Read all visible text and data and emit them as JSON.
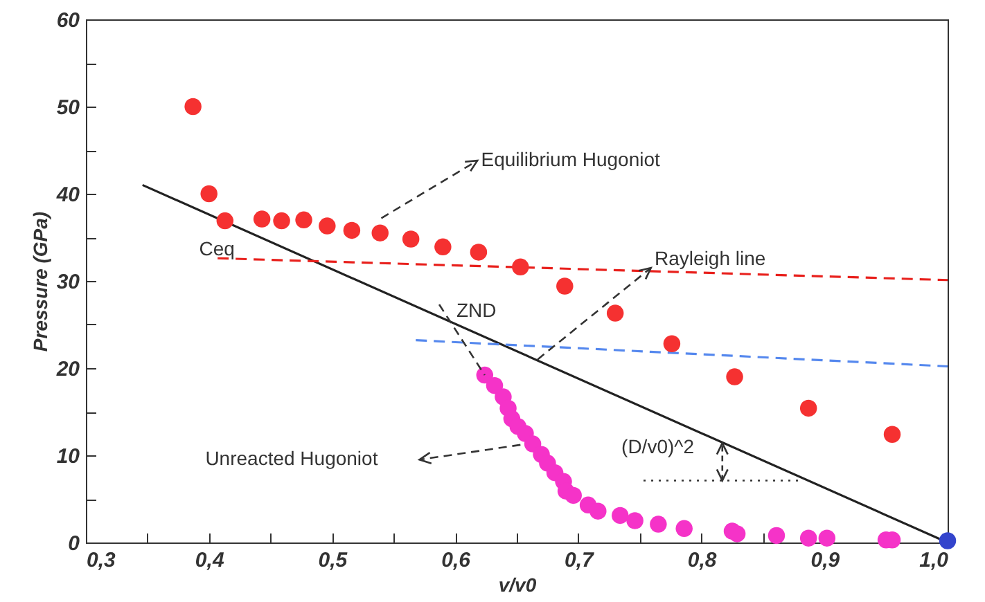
{
  "chart_data": {
    "type": "scatter",
    "xlabel": "v/v0",
    "ylabel": "Pressure (GPa)",
    "xlim": [
      0.3,
      1.0
    ],
    "ylim": [
      0,
      60
    ],
    "xticks": [
      {
        "value": 0.3,
        "label": "0,3"
      },
      {
        "value": 0.35,
        "label": null
      },
      {
        "value": 0.4,
        "label": "0,4"
      },
      {
        "value": 0.45,
        "label": null
      },
      {
        "value": 0.5,
        "label": "0,5"
      },
      {
        "value": 0.55,
        "label": null
      },
      {
        "value": 0.6,
        "label": "0,6"
      },
      {
        "value": 0.65,
        "label": null
      },
      {
        "value": 0.7,
        "label": "0,7"
      },
      {
        "value": 0.75,
        "label": null
      },
      {
        "value": 0.8,
        "label": "0,8"
      },
      {
        "value": 0.85,
        "label": null
      },
      {
        "value": 0.9,
        "label": "0,9"
      },
      {
        "value": 0.95,
        "label": null
      },
      {
        "value": 1.0,
        "label": "1,0"
      }
    ],
    "yticks": [
      0,
      {
        "value": 5,
        "label": null
      },
      10,
      {
        "value": 15,
        "label": null
      },
      20,
      {
        "value": 25,
        "label": null
      },
      30,
      {
        "value": 35,
        "label": null
      },
      40,
      {
        "value": 45,
        "label": null
      },
      50,
      {
        "value": 55,
        "label": null
      },
      60
    ],
    "marker": "circle",
    "series": [
      {
        "type": "line",
        "color": "#222222",
        "line_style": "solid",
        "marker": "none",
        "x": [
          0.346,
          1.0
        ],
        "values": [
          41.0,
          0
        ]
      },
      {
        "type": "line",
        "color": "#e8201c",
        "line_style": "dashed",
        "marker": "none",
        "x": [
          0.407,
          1.0
        ],
        "values": [
          32.6,
          30.1
        ]
      },
      {
        "type": "line",
        "color": "#5588ee",
        "line_style": "dashed",
        "marker": "none",
        "x": [
          0.568,
          1.0
        ],
        "values": [
          23.2,
          20.2
        ]
      },
      {
        "color": "#f53131",
        "x": [
          0.387,
          0.4,
          0.413,
          0.443,
          0.459,
          0.477,
          0.496,
          0.516,
          0.539,
          0.564,
          0.59,
          0.619,
          0.653,
          0.689,
          0.73,
          0.776,
          0.827,
          0.887,
          0.955
        ],
        "values": [
          50,
          40,
          36.9,
          37.1,
          36.9,
          37.0,
          36.3,
          35.8,
          35.5,
          34.8,
          33.9,
          33.3,
          31.6,
          29.4,
          26.3,
          22.8,
          19.0,
          15.4,
          12.4
        ]
      },
      {
        "color": "#f533c8",
        "x": [
          0.624,
          0.632,
          0.639,
          0.643,
          0.646,
          0.651,
          0.657,
          0.663,
          0.67,
          0.675,
          0.681,
          0.688,
          0.69,
          0.696,
          0.708,
          0.716,
          0.734,
          0.746,
          0.765,
          0.786,
          0.825,
          0.829,
          0.861,
          0.887,
          0.902,
          0.95,
          0.955
        ],
        "values": [
          19.2,
          18.0,
          16.7,
          15.4,
          14.2,
          13.3,
          12.5,
          11.3,
          10.1,
          9.1,
          8.0,
          7.0,
          5.9,
          5.4,
          4.3,
          3.6,
          3.1,
          2.5,
          2.1,
          1.6,
          1.3,
          1.0,
          0.8,
          0.5,
          0.5,
          0.3,
          0.3
        ]
      },
      {
        "color": "#3344cc",
        "x": [
          1.0
        ],
        "values": [
          0.2
        ]
      }
    ],
    "annotations": [
      "Equilibrium Hugoniot",
      {
        "text": "Rayleigh line",
        "x": 0.667,
        "y": 21.0
      },
      "Ceq",
      {
        "text": "ZND",
        "x": 0.624,
        "y": 19.2
      },
      "Unreacted Hugoniot",
      {
        "text": "(D/v0)^2",
        "x": 0.817,
        "y": 11.4
      }
    ]
  }
}
